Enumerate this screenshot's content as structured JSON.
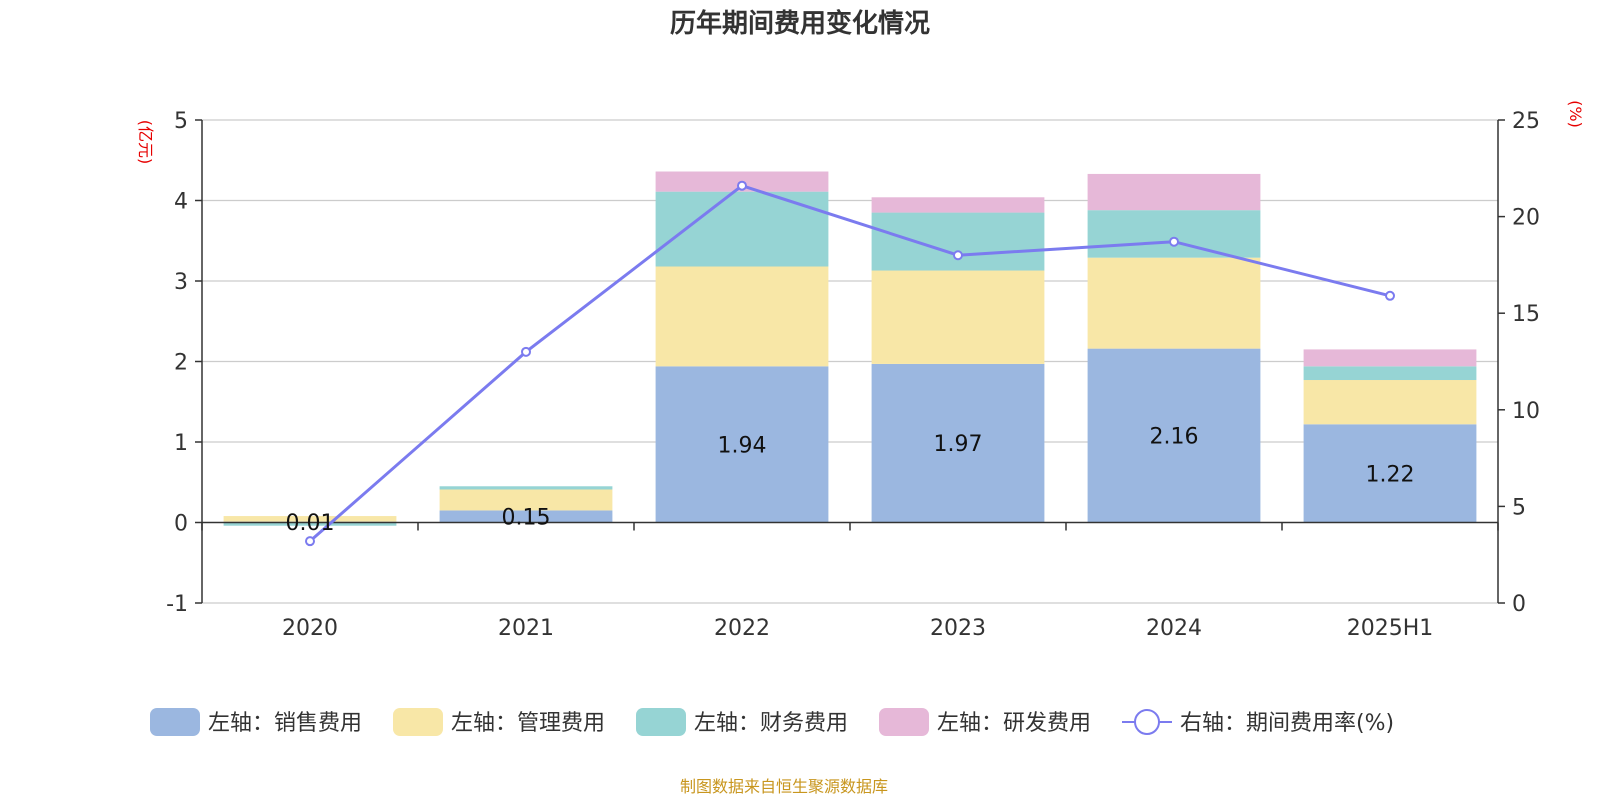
{
  "chart_data": {
    "type": "bar",
    "title": "历年期间费用变化情况",
    "categories": [
      "2020",
      "2021",
      "2022",
      "2023",
      "2024",
      "2025H1"
    ],
    "left_axis": {
      "unit": "(亿元)",
      "ylim": [
        -1,
        5
      ],
      "ticks": [
        "-1",
        "0",
        "1",
        "2",
        "3",
        "4",
        "5"
      ]
    },
    "right_axis": {
      "unit": "(%)",
      "ylim": [
        0,
        25
      ],
      "ticks": [
        "0",
        "5",
        "10",
        "15",
        "20",
        "25"
      ]
    },
    "series": [
      {
        "name": "左轴：销售费用",
        "kind": "bar",
        "axis": "left",
        "color": "#9bb7e0",
        "values": [
          0.01,
          0.15,
          1.94,
          1.97,
          2.16,
          1.22
        ],
        "labels": [
          "0.01",
          "0.15",
          "1.94",
          "1.97",
          "2.16",
          "1.22"
        ]
      },
      {
        "name": "左轴：管理费用",
        "kind": "bar",
        "axis": "left",
        "color": "#f8e7a7",
        "values": [
          0.07,
          0.26,
          1.24,
          1.16,
          1.13,
          0.55
        ]
      },
      {
        "name": "左轴：财务费用",
        "kind": "bar",
        "axis": "left",
        "color": "#96d4d4",
        "values": [
          -0.04,
          0.04,
          0.93,
          0.72,
          0.59,
          0.17
        ]
      },
      {
        "name": "左轴：研发费用",
        "kind": "bar",
        "axis": "left",
        "color": "#e6b8d8",
        "values": [
          0.0,
          0.0,
          0.25,
          0.19,
          0.45,
          0.21
        ]
      },
      {
        "name": "右轴：期间费用率(%)",
        "kind": "line",
        "axis": "right",
        "color": "#7b7bef",
        "values": [
          3.2,
          13.0,
          21.6,
          18.0,
          18.7,
          15.9
        ]
      }
    ],
    "grid": true,
    "legend_position": "bottom-center",
    "source": "制图数据来自恒生聚源数据库"
  }
}
